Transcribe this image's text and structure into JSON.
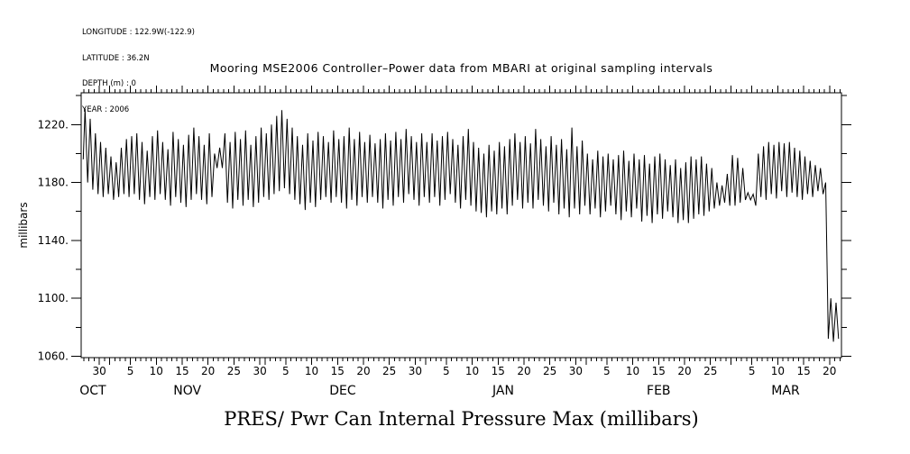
{
  "header_info": {
    "lines": [
      "LONGITUDE : 122.9W(-122.9)",
      "LATITUDE : 36.2N",
      "DEPTH (m) : 0",
      "YEAR : 2006"
    ]
  },
  "colors": {
    "line": "#000000",
    "background": "#ffffff",
    "text": "#000000"
  },
  "chart_data": {
    "type": "line",
    "title": "Mooring MSE2006 Controller–Power data from MBARI at original sampling intervals",
    "caption": "PRES/ Pwr Can Internal Pressure Max (millibars)",
    "ylabel": "millibars",
    "grid": false,
    "legend": "none",
    "y_major_ticks": [
      1060,
      1100,
      1140,
      1180,
      1220
    ],
    "y_major_labels": [
      "1060.",
      "1100.",
      "1140.",
      "1180.",
      "1220."
    ],
    "y_minor_ticks": [
      1080,
      1120,
      1160,
      1200,
      1240
    ],
    "ylim": [
      1059,
      1242
    ],
    "x_unit": "days since Oct 27",
    "x_range_days": [
      -0.5,
      146.3
    ],
    "x_day_labels": [
      [
        3,
        "30"
      ],
      [
        9,
        "5"
      ],
      [
        14,
        "10"
      ],
      [
        19,
        "15"
      ],
      [
        24,
        "20"
      ],
      [
        29,
        "25"
      ],
      [
        34,
        "30"
      ],
      [
        39,
        "5"
      ],
      [
        44,
        "10"
      ],
      [
        49,
        "15"
      ],
      [
        54,
        "20"
      ],
      [
        59,
        "25"
      ],
      [
        64,
        "30"
      ],
      [
        70,
        "5"
      ],
      [
        75,
        "10"
      ],
      [
        80,
        "15"
      ],
      [
        85,
        "20"
      ],
      [
        90,
        "25"
      ],
      [
        95,
        "30"
      ],
      [
        101,
        "5"
      ],
      [
        106,
        "10"
      ],
      [
        111,
        "15"
      ],
      [
        116,
        "20"
      ],
      [
        121,
        "25"
      ],
      [
        129,
        "5"
      ],
      [
        134,
        "10"
      ],
      [
        139,
        "15"
      ],
      [
        144,
        "20"
      ]
    ],
    "x_unlabeled_major_days": [
      5,
      35,
      66,
      97,
      125
    ],
    "x_month_labels": [
      [
        1.75,
        "OCT"
      ],
      [
        20,
        "NOV"
      ],
      [
        50,
        "DEC"
      ],
      [
        81,
        "JAN"
      ],
      [
        111,
        "FEB"
      ],
      [
        135.5,
        "MAR"
      ]
    ],
    "series": [
      {
        "name": "PRES/ Pwr Can Internal Pressure Max",
        "units": "millibars",
        "daily_envelope_mbar": [
          [
            1180,
            1231
          ],
          [
            1175,
            1224
          ],
          [
            1172,
            1214
          ],
          [
            1170,
            1208
          ],
          [
            1172,
            1204
          ],
          [
            1168,
            1198
          ],
          [
            1170,
            1194
          ],
          [
            1172,
            1204
          ],
          [
            1170,
            1210
          ],
          [
            1172,
            1212
          ],
          [
            1168,
            1214
          ],
          [
            1165,
            1208
          ],
          [
            1170,
            1202
          ],
          [
            1168,
            1212
          ],
          [
            1172,
            1216
          ],
          [
            1168,
            1208
          ],
          [
            1164,
            1203
          ],
          [
            1170,
            1215
          ],
          [
            1166,
            1210
          ],
          [
            1163,
            1206
          ],
          [
            1168,
            1213
          ],
          [
            1172,
            1218
          ],
          [
            1168,
            1212
          ],
          [
            1165,
            1206
          ],
          [
            1170,
            1214
          ],
          [
            1190,
            1200
          ],
          [
            1190,
            1204
          ],
          [
            1166,
            1214
          ],
          [
            1162,
            1208
          ],
          [
            1168,
            1215
          ],
          [
            1164,
            1210
          ],
          [
            1168,
            1216
          ],
          [
            1163,
            1206
          ],
          [
            1166,
            1212
          ],
          [
            1170,
            1218
          ],
          [
            1168,
            1214
          ],
          [
            1172,
            1220
          ],
          [
            1174,
            1226
          ],
          [
            1176,
            1230
          ],
          [
            1172,
            1224
          ],
          [
            1168,
            1218
          ],
          [
            1165,
            1212
          ],
          [
            1161,
            1206
          ],
          [
            1166,
            1214
          ],
          [
            1163,
            1209
          ],
          [
            1168,
            1215
          ],
          [
            1170,
            1212
          ],
          [
            1166,
            1208
          ],
          [
            1170,
            1216
          ],
          [
            1166,
            1210
          ],
          [
            1162,
            1212
          ],
          [
            1168,
            1218
          ],
          [
            1164,
            1210
          ],
          [
            1170,
            1215
          ],
          [
            1166,
            1208
          ],
          [
            1170,
            1213
          ],
          [
            1166,
            1207
          ],
          [
            1162,
            1210
          ],
          [
            1168,
            1214
          ],
          [
            1164,
            1209
          ],
          [
            1170,
            1215
          ],
          [
            1166,
            1210
          ],
          [
            1172,
            1217
          ],
          [
            1168,
            1212
          ],
          [
            1164,
            1208
          ],
          [
            1170,
            1214
          ],
          [
            1166,
            1208
          ],
          [
            1170,
            1214
          ],
          [
            1164,
            1209
          ],
          [
            1168,
            1212
          ],
          [
            1172,
            1215
          ],
          [
            1166,
            1210
          ],
          [
            1162,
            1206
          ],
          [
            1168,
            1212
          ],
          [
            1164,
            1217
          ],
          [
            1160,
            1208
          ],
          [
            1159,
            1204
          ],
          [
            1156,
            1200
          ],
          [
            1160,
            1206
          ],
          [
            1158,
            1202
          ],
          [
            1162,
            1208
          ],
          [
            1158,
            1205
          ],
          [
            1164,
            1210
          ],
          [
            1168,
            1214
          ],
          [
            1162,
            1208
          ],
          [
            1166,
            1212
          ],
          [
            1162,
            1207
          ],
          [
            1168,
            1217
          ],
          [
            1164,
            1210
          ],
          [
            1160,
            1205
          ],
          [
            1166,
            1212
          ],
          [
            1158,
            1206
          ],
          [
            1162,
            1210
          ],
          [
            1156,
            1203
          ],
          [
            1162,
            1218
          ],
          [
            1158,
            1205
          ],
          [
            1164,
            1209
          ],
          [
            1158,
            1200
          ],
          [
            1162,
            1196
          ],
          [
            1156,
            1202
          ],
          [
            1160,
            1198
          ],
          [
            1164,
            1200
          ],
          [
            1158,
            1196
          ],
          [
            1154,
            1199
          ],
          [
            1160,
            1202
          ],
          [
            1156,
            1195
          ],
          [
            1162,
            1200
          ],
          [
            1153,
            1196
          ],
          [
            1157,
            1199
          ],
          [
            1152,
            1193
          ],
          [
            1158,
            1198
          ],
          [
            1155,
            1200
          ],
          [
            1160,
            1196
          ],
          [
            1156,
            1192
          ],
          [
            1152,
            1196
          ],
          [
            1154,
            1190
          ],
          [
            1152,
            1194
          ],
          [
            1155,
            1198
          ],
          [
            1158,
            1196
          ],
          [
            1157,
            1198
          ],
          [
            1160,
            1193
          ],
          [
            1162,
            1190
          ],
          [
            1164,
            1180
          ],
          [
            1166,
            1178
          ],
          [
            1164,
            1186
          ],
          [
            1164,
            1199
          ],
          [
            1166,
            1197
          ],
          [
            1168,
            1190
          ],
          [
            1168,
            1173
          ],
          [
            1164,
            1172
          ],
          [
            1170,
            1200
          ],
          [
            1168,
            1205
          ],
          [
            1172,
            1208
          ],
          [
            1169,
            1206
          ],
          [
            1174,
            1208
          ],
          [
            1170,
            1207
          ],
          [
            1173,
            1208
          ],
          [
            1170,
            1204
          ],
          [
            1168,
            1202
          ],
          [
            1172,
            1198
          ],
          [
            1170,
            1195
          ],
          [
            1174,
            1192
          ],
          [
            1172,
            1190
          ],
          [
            1072,
            1180
          ],
          [
            1070,
            1100
          ],
          [
            1072,
            1097
          ]
        ]
      }
    ]
  }
}
